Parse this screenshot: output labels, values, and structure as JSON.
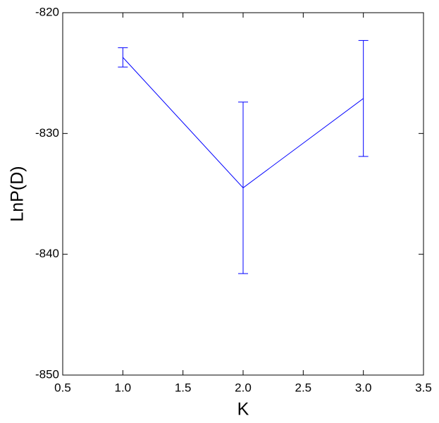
{
  "chart_data": {
    "type": "line",
    "xlabel": "K",
    "ylabel": "LnP(D)",
    "x": [
      1,
      2,
      3
    ],
    "series": [
      {
        "color": "#0000ff",
        "values": [
          -823.7,
          -834.5,
          -827.1
        ],
        "errors": [
          0.8,
          7.1,
          4.8
        ]
      }
    ],
    "xlim": [
      0.5,
      3.5
    ],
    "xticks": [
      0.5,
      {
        "value": 1,
        "label": "1.0"
      },
      1.5,
      {
        "value": 2,
        "label": "2.0"
      },
      2.5,
      {
        "value": 3,
        "label": "3.0"
      },
      3.5
    ],
    "ylim": [
      -850,
      -820
    ],
    "yticks": [
      -820,
      -830,
      -840,
      -850
    ],
    "grid": false
  }
}
